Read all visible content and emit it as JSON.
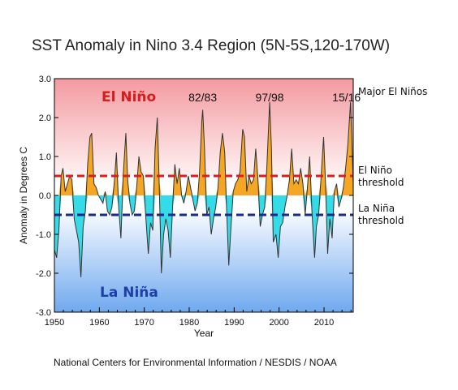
{
  "chart_data": {
    "type": "area",
    "title": "SST Anomaly in Nino 3.4 Region (5N-5S,120-170W)",
    "xlabel": "Year",
    "ylabel": "Anomaly in Degrees C",
    "xlim": [
      1950,
      2016.5
    ],
    "ylim": [
      -3.0,
      3.0
    ],
    "xticks": [
      1950,
      1960,
      1970,
      1980,
      1990,
      2000,
      2010
    ],
    "yticks": [
      "3.0",
      "2.0",
      "1.0",
      "0.0",
      "-1.0",
      "-2.0",
      "-3.0"
    ],
    "thresholds": {
      "el_nino": 0.5,
      "la_nina": -0.5
    },
    "regions": {
      "el_nino": "El Niño",
      "la_nina": "La Niña"
    },
    "side_labels": {
      "major": "Major El Niños",
      "el_nino_line1": "El Niño",
      "el_nino_line2": "threshold",
      "la_nina_line1": "La Niña",
      "la_nina_line2": "threshold"
    },
    "annotations": [
      {
        "text": "82/83",
        "x": 1983.0
      },
      {
        "text": "97/98",
        "x": 1997.9
      },
      {
        "text": "15/16",
        "x": 2015.0
      }
    ],
    "credit": "National Centers for Environmental Information / NESDIS / NOAA",
    "colors": {
      "positive": "#f5a623",
      "negative": "#35dbe6",
      "line": "#333333",
      "el_nino_dash": "#d81e1e",
      "la_nina_dash": "#1a2a8a",
      "el_nino_text": "#d31f1f",
      "la_nina_text": "#1e3fa8"
    },
    "series": [
      {
        "points": [
          [
            1950.0,
            -1.4
          ],
          [
            1950.5,
            -1.6
          ],
          [
            1951.0,
            -0.9
          ],
          [
            1951.5,
            0.5
          ],
          [
            1951.9,
            0.7
          ],
          [
            1952.4,
            0.1
          ],
          [
            1952.9,
            0.3
          ],
          [
            1953.4,
            0.5
          ],
          [
            1953.9,
            0.4
          ],
          [
            1954.4,
            -0.6
          ],
          [
            1954.9,
            -0.9
          ],
          [
            1955.4,
            -1.2
          ],
          [
            1955.9,
            -2.1
          ],
          [
            1956.4,
            -0.8
          ],
          [
            1956.9,
            -0.4
          ],
          [
            1957.4,
            0.8
          ],
          [
            1957.9,
            1.5
          ],
          [
            1958.3,
            1.6
          ],
          [
            1958.8,
            0.3
          ],
          [
            1959.3,
            0.2
          ],
          [
            1959.8,
            0.0
          ],
          [
            1960.3,
            -0.1
          ],
          [
            1960.8,
            -0.2
          ],
          [
            1961.3,
            0.1
          ],
          [
            1961.8,
            -0.4
          ],
          [
            1962.3,
            -0.5
          ],
          [
            1962.8,
            -0.3
          ],
          [
            1963.3,
            0.3
          ],
          [
            1963.8,
            1.1
          ],
          [
            1964.3,
            -0.3
          ],
          [
            1964.8,
            -1.1
          ],
          [
            1965.3,
            0.5
          ],
          [
            1965.9,
            1.6
          ],
          [
            1966.3,
            0.4
          ],
          [
            1966.8,
            -0.2
          ],
          [
            1967.3,
            -0.5
          ],
          [
            1967.8,
            -0.4
          ],
          [
            1968.3,
            0.2
          ],
          [
            1968.8,
            1.0
          ],
          [
            1969.3,
            0.6
          ],
          [
            1969.8,
            0.5
          ],
          [
            1970.3,
            -0.5
          ],
          [
            1970.9,
            -1.5
          ],
          [
            1971.4,
            -0.7
          ],
          [
            1971.9,
            -0.9
          ],
          [
            1972.4,
            1.2
          ],
          [
            1972.9,
            2.0
          ],
          [
            1973.3,
            0.4
          ],
          [
            1973.8,
            -2.0
          ],
          [
            1974.3,
            -1.0
          ],
          [
            1974.8,
            -0.6
          ],
          [
            1975.3,
            -0.9
          ],
          [
            1975.8,
            -1.6
          ],
          [
            1976.3,
            -0.3
          ],
          [
            1976.8,
            0.8
          ],
          [
            1977.3,
            0.3
          ],
          [
            1977.8,
            0.7
          ],
          [
            1978.3,
            0.0
          ],
          [
            1978.8,
            -0.2
          ],
          [
            1979.3,
            0.1
          ],
          [
            1979.8,
            0.5
          ],
          [
            1980.3,
            0.2
          ],
          [
            1980.8,
            -0.1
          ],
          [
            1981.3,
            -0.4
          ],
          [
            1981.8,
            -0.2
          ],
          [
            1982.3,
            0.6
          ],
          [
            1982.8,
            1.9
          ],
          [
            1983.0,
            2.2
          ],
          [
            1983.4,
            1.2
          ],
          [
            1983.9,
            -0.5
          ],
          [
            1984.4,
            -0.3
          ],
          [
            1984.9,
            -1.0
          ],
          [
            1985.4,
            -0.6
          ],
          [
            1985.9,
            -0.3
          ],
          [
            1986.4,
            0.2
          ],
          [
            1986.9,
            1.1
          ],
          [
            1987.4,
            1.6
          ],
          [
            1987.9,
            1.1
          ],
          [
            1988.3,
            -0.3
          ],
          [
            1988.8,
            -1.8
          ],
          [
            1989.3,
            -0.8
          ],
          [
            1989.8,
            0.1
          ],
          [
            1990.3,
            0.3
          ],
          [
            1990.8,
            0.4
          ],
          [
            1991.3,
            0.6
          ],
          [
            1991.9,
            1.7
          ],
          [
            1992.3,
            1.5
          ],
          [
            1992.8,
            0.1
          ],
          [
            1993.3,
            0.5
          ],
          [
            1993.8,
            0.3
          ],
          [
            1994.3,
            0.4
          ],
          [
            1994.8,
            1.2
          ],
          [
            1995.3,
            0.4
          ],
          [
            1995.8,
            -0.8
          ],
          [
            1996.3,
            -0.5
          ],
          [
            1996.8,
            -0.3
          ],
          [
            1997.3,
            0.8
          ],
          [
            1997.9,
            2.4
          ],
          [
            1998.3,
            1.2
          ],
          [
            1998.7,
            -1.2
          ],
          [
            1999.3,
            -1.0
          ],
          [
            1999.8,
            -1.6
          ],
          [
            2000.3,
            -0.8
          ],
          [
            2000.8,
            -0.7
          ],
          [
            2001.3,
            -0.3
          ],
          [
            2001.8,
            0.0
          ],
          [
            2002.3,
            0.4
          ],
          [
            2002.8,
            1.2
          ],
          [
            2003.3,
            0.3
          ],
          [
            2003.8,
            0.4
          ],
          [
            2004.3,
            0.3
          ],
          [
            2004.8,
            0.7
          ],
          [
            2005.3,
            0.3
          ],
          [
            2005.8,
            -0.5
          ],
          [
            2006.3,
            0.2
          ],
          [
            2006.8,
            1.0
          ],
          [
            2007.3,
            -0.4
          ],
          [
            2007.9,
            -1.6
          ],
          [
            2008.3,
            -0.8
          ],
          [
            2008.8,
            -0.5
          ],
          [
            2009.3,
            0.4
          ],
          [
            2009.9,
            1.5
          ],
          [
            2010.3,
            0.4
          ],
          [
            2010.8,
            -1.5
          ],
          [
            2011.3,
            -0.6
          ],
          [
            2011.8,
            -1.1
          ],
          [
            2012.3,
            0.1
          ],
          [
            2012.8,
            0.3
          ],
          [
            2013.3,
            -0.3
          ],
          [
            2013.8,
            -0.1
          ],
          [
            2014.3,
            0.2
          ],
          [
            2014.8,
            0.7
          ],
          [
            2015.3,
            1.3
          ],
          [
            2015.9,
            2.4
          ],
          [
            2016.3,
            1.0
          ],
          [
            2016.5,
            0.3
          ]
        ]
      }
    ]
  }
}
